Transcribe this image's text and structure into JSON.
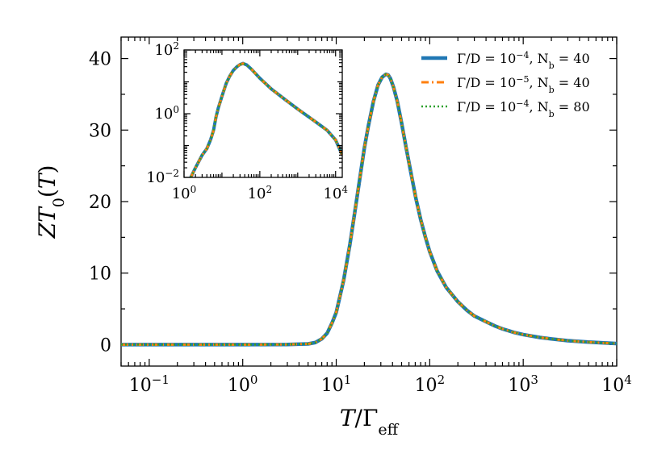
{
  "chart_data": {
    "type": "line",
    "xscale": "log",
    "xlim": [
      0.05,
      10000
    ],
    "ylim": [
      -3,
      43
    ],
    "xlabel": "T/Γ_eff",
    "ylabel": "ZT_0(T)",
    "yticks": [
      0,
      10,
      20,
      30,
      40
    ],
    "xticks": [
      0.1,
      1,
      10,
      100,
      1000,
      10000
    ],
    "xtick_labels": [
      {
        "base": "10",
        "exp": "−1"
      },
      {
        "base": "10",
        "exp": "0"
      },
      {
        "base": "10",
        "exp": "1"
      },
      {
        "base": "10",
        "exp": "2"
      },
      {
        "base": "10",
        "exp": "3"
      },
      {
        "base": "10",
        "exp": "4"
      }
    ],
    "legend_position": "top-right",
    "series": [
      {
        "name": "Γ/D = 10^-4, N_b = 40",
        "color": "#1f77b4",
        "style": "solid"
      },
      {
        "name": "Γ/D = 10^-5, N_b = 40",
        "color": "#ff7f0e",
        "style": "dashdot"
      },
      {
        "name": "Γ/D = 10^-4, N_b = 80",
        "color": "#2ca02c",
        "style": "dotted"
      }
    ],
    "legend": [
      {
        "prefix": "Γ/D = 10",
        "exp": "−4",
        "mid": ", N",
        "sub": "b",
        "suffix": " = 40"
      },
      {
        "prefix": "Γ/D = 10",
        "exp": "−5",
        "mid": ", N",
        "sub": "b",
        "suffix": " = 40"
      },
      {
        "prefix": "Γ/D = 10",
        "exp": "−4",
        "mid": ", N",
        "sub": "b",
        "suffix": " = 80"
      }
    ],
    "curve": {
      "x": [
        0.05,
        0.1,
        0.3,
        1,
        3,
        5,
        6,
        7,
        8,
        9,
        10,
        12,
        14,
        16,
        18,
        20,
        22,
        25,
        28,
        31,
        34,
        36,
        38,
        41,
        45,
        50,
        56,
        63,
        71,
        80,
        90,
        100,
        120,
        150,
        200,
        250,
        300,
        400,
        500,
        600,
        800,
        1000,
        1500,
        2000,
        3000,
        5000,
        7000,
        10000
      ],
      "y": [
        0,
        0,
        0,
        0,
        0.02,
        0.1,
        0.3,
        0.8,
        1.6,
        3.0,
        4.5,
        9,
        14,
        19,
        23.5,
        27.5,
        30.5,
        34,
        36.3,
        37.4,
        37.8,
        37.7,
        37.2,
        36,
        34,
        31,
        27.5,
        24,
        20.5,
        17.5,
        15,
        13,
        10.3,
        8,
        6,
        4.8,
        4,
        3.2,
        2.6,
        2.2,
        1.7,
        1.4,
        1.0,
        0.8,
        0.55,
        0.35,
        0.25,
        0.15
      ]
    },
    "inset": {
      "xscale": "log",
      "yscale": "log",
      "xlim": [
        1,
        15000
      ],
      "ylim": [
        0.01,
        100
      ],
      "xticks": [
        1,
        100,
        10000
      ],
      "xtick_labels": [
        {
          "base": "10",
          "exp": "0"
        },
        {
          "base": "10",
          "exp": "2"
        },
        {
          "base": "10",
          "exp": "4"
        }
      ],
      "yticks": [
        0.01,
        1,
        100
      ],
      "ytick_labels": [
        {
          "base": "10",
          "exp": "−2"
        },
        {
          "base": "10",
          "exp": "0"
        },
        {
          "base": "10",
          "exp": "2"
        }
      ],
      "curve": {
        "x": [
          1.5,
          2,
          3,
          4,
          5,
          6,
          7,
          8,
          10,
          13,
          16,
          20,
          25,
          30,
          36,
          45,
          60,
          100,
          200,
          500,
          1000,
          3000,
          6000,
          10000,
          15000
        ],
        "y": [
          0.01,
          0.02,
          0.05,
          0.08,
          0.15,
          0.3,
          0.8,
          1.5,
          3.5,
          9,
          15,
          23,
          30,
          35,
          37.8,
          34,
          25,
          13,
          6,
          2.6,
          1.4,
          0.55,
          0.3,
          0.15,
          0.05
        ]
      }
    }
  }
}
